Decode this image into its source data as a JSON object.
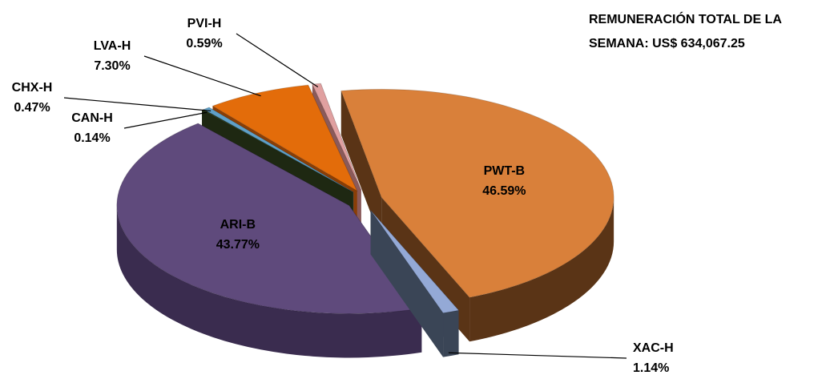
{
  "chart_data": {
    "type": "pie",
    "annotation": [
      "REMUNERACIÓN TOTAL DE LA",
      "SEMANA: US$ 634,067.25"
    ],
    "categories": [
      "PWT-B",
      "XAC-H",
      "ARI-B",
      "CAN-H",
      "CHX-H",
      "LVA-H",
      "PVI-H"
    ],
    "values": [
      46.59,
      1.14,
      43.77,
      0.14,
      0.47,
      7.3,
      0.59
    ],
    "value_labels": [
      "46.59%",
      "1.14%",
      "43.77%",
      "0.14%",
      "0.47%",
      "7.30%",
      "0.59%"
    ],
    "colors": [
      "#d9803a",
      "#94a9d6",
      "#5f4a7c",
      "#2e3d1c",
      "#5fa0c8",
      "#e36c0a",
      "#e0a0a0"
    ],
    "side_colors": [
      "#5a3416",
      "#3a4556",
      "#3a2c4f",
      "#1e2812",
      "#3a6a88",
      "#8a3e06",
      "#8a5a5a"
    ]
  }
}
